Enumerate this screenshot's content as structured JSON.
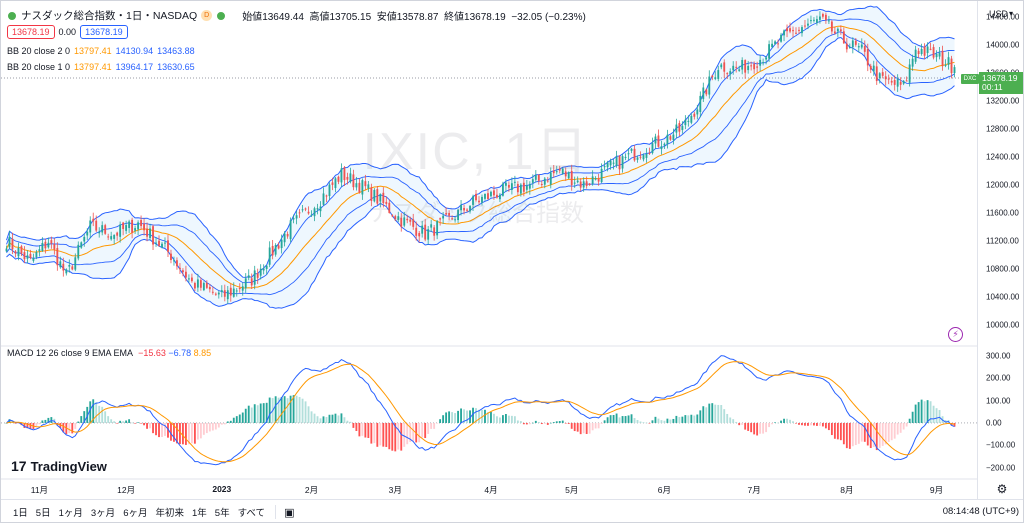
{
  "header": {
    "symbol_title": "ナスダック総合指数・1日・NASDAQ",
    "ohlc": [
      {
        "label": "始値",
        "value": "13649.44"
      },
      {
        "label": "高値",
        "value": "13705.15"
      },
      {
        "label": "安値",
        "value": "13578.87"
      },
      {
        "label": "終値",
        "value": "13678.19"
      },
      {
        "label": "",
        "value": "−32.05 (−0.23%)"
      }
    ],
    "sell_price": "13678.19",
    "spread": "0.00",
    "buy_price": "13678.19"
  },
  "indicators": {
    "bb1": {
      "label": "BB 20 close 2 0",
      "basis": "13797.41",
      "upper": "14130.94",
      "lower": "13463.88"
    },
    "bb2": {
      "label": "BB 20 close 1 0",
      "basis": "13797.41",
      "upper": "13964.17",
      "lower": "13630.65"
    },
    "macd": {
      "label": "MACD 12 26 close 9 EMA EMA",
      "hist": "−15.63",
      "macd": "−6.78",
      "signal": "8.85"
    }
  },
  "watermark": {
    "line1": "IXIC, 1日",
    "line2": "ナスダック総合指数"
  },
  "price_scale": {
    "currency": "USD",
    "last_price": "13678.19",
    "countdown": "00:11",
    "tag": "DXC",
    "ticks": [
      "14400.00",
      "14000.00",
      "13600.00",
      "13200.00",
      "12800.00",
      "12400.00",
      "12000.00",
      "11600.00",
      "11200.00",
      "10800.00",
      "10400.00",
      "10000.00"
    ]
  },
  "macd_scale": {
    "ticks": [
      "300.00",
      "200.00",
      "100.00",
      "0.00",
      "−100.00",
      "−200.00"
    ]
  },
  "time_axis": {
    "labels": [
      "11月",
      "12月",
      "2023",
      "2月",
      "3月",
      "4月",
      "5月",
      "6月",
      "7月",
      "8月",
      "9月"
    ]
  },
  "branding": {
    "name": "TradingView"
  },
  "bottom_bar": {
    "ranges": [
      "1日",
      "5日",
      "1ヶ月",
      "3ヶ月",
      "6ヶ月",
      "年初来",
      "1年",
      "5年",
      "すべて"
    ],
    "clock": "08:14:48 (UTC+9)"
  },
  "colors": {
    "up": "#26a69a",
    "down": "#ef5350",
    "band": "#2962ff",
    "basis": "#ff9800",
    "macd": "#2962ff",
    "signal": "#ff9800",
    "last": "#4caf50"
  },
  "chart_data": {
    "type": "candlestick",
    "x_start_label": "2022-10-20",
    "y_range": [
      9700,
      14550
    ],
    "n": 225,
    "anchors": [
      [
        0,
        11200
      ],
      [
        8,
        10900
      ],
      [
        14,
        11200
      ],
      [
        20,
        10700
      ],
      [
        28,
        11400
      ],
      [
        36,
        11300
      ],
      [
        44,
        11450
      ],
      [
        55,
        11000
      ],
      [
        62,
        10600
      ],
      [
        72,
        10400
      ],
      [
        82,
        10650
      ],
      [
        95,
        11400
      ],
      [
        105,
        11800
      ],
      [
        112,
        12150
      ],
      [
        120,
        11950
      ],
      [
        132,
        11500
      ],
      [
        140,
        11300
      ],
      [
        148,
        11500
      ],
      [
        156,
        11750
      ],
      [
        165,
        11900
      ],
      [
        175,
        12000
      ],
      [
        185,
        12200
      ],
      [
        193,
        12000
      ],
      [
        202,
        12250
      ],
      [
        210,
        12450
      ],
      [
        220,
        12650
      ],
      [
        226,
        12800
      ],
      [
        232,
        13200
      ],
      [
        238,
        13700
      ],
      [
        245,
        13650
      ],
      [
        252,
        13800
      ],
      [
        260,
        14100
      ],
      [
        266,
        14250
      ],
      [
        272,
        14350
      ],
      [
        280,
        14050
      ],
      [
        286,
        13900
      ],
      [
        292,
        13500
      ],
      [
        300,
        13400
      ],
      [
        304,
        13950
      ],
      [
        310,
        13850
      ],
      [
        317,
        13678
      ]
    ]
  }
}
